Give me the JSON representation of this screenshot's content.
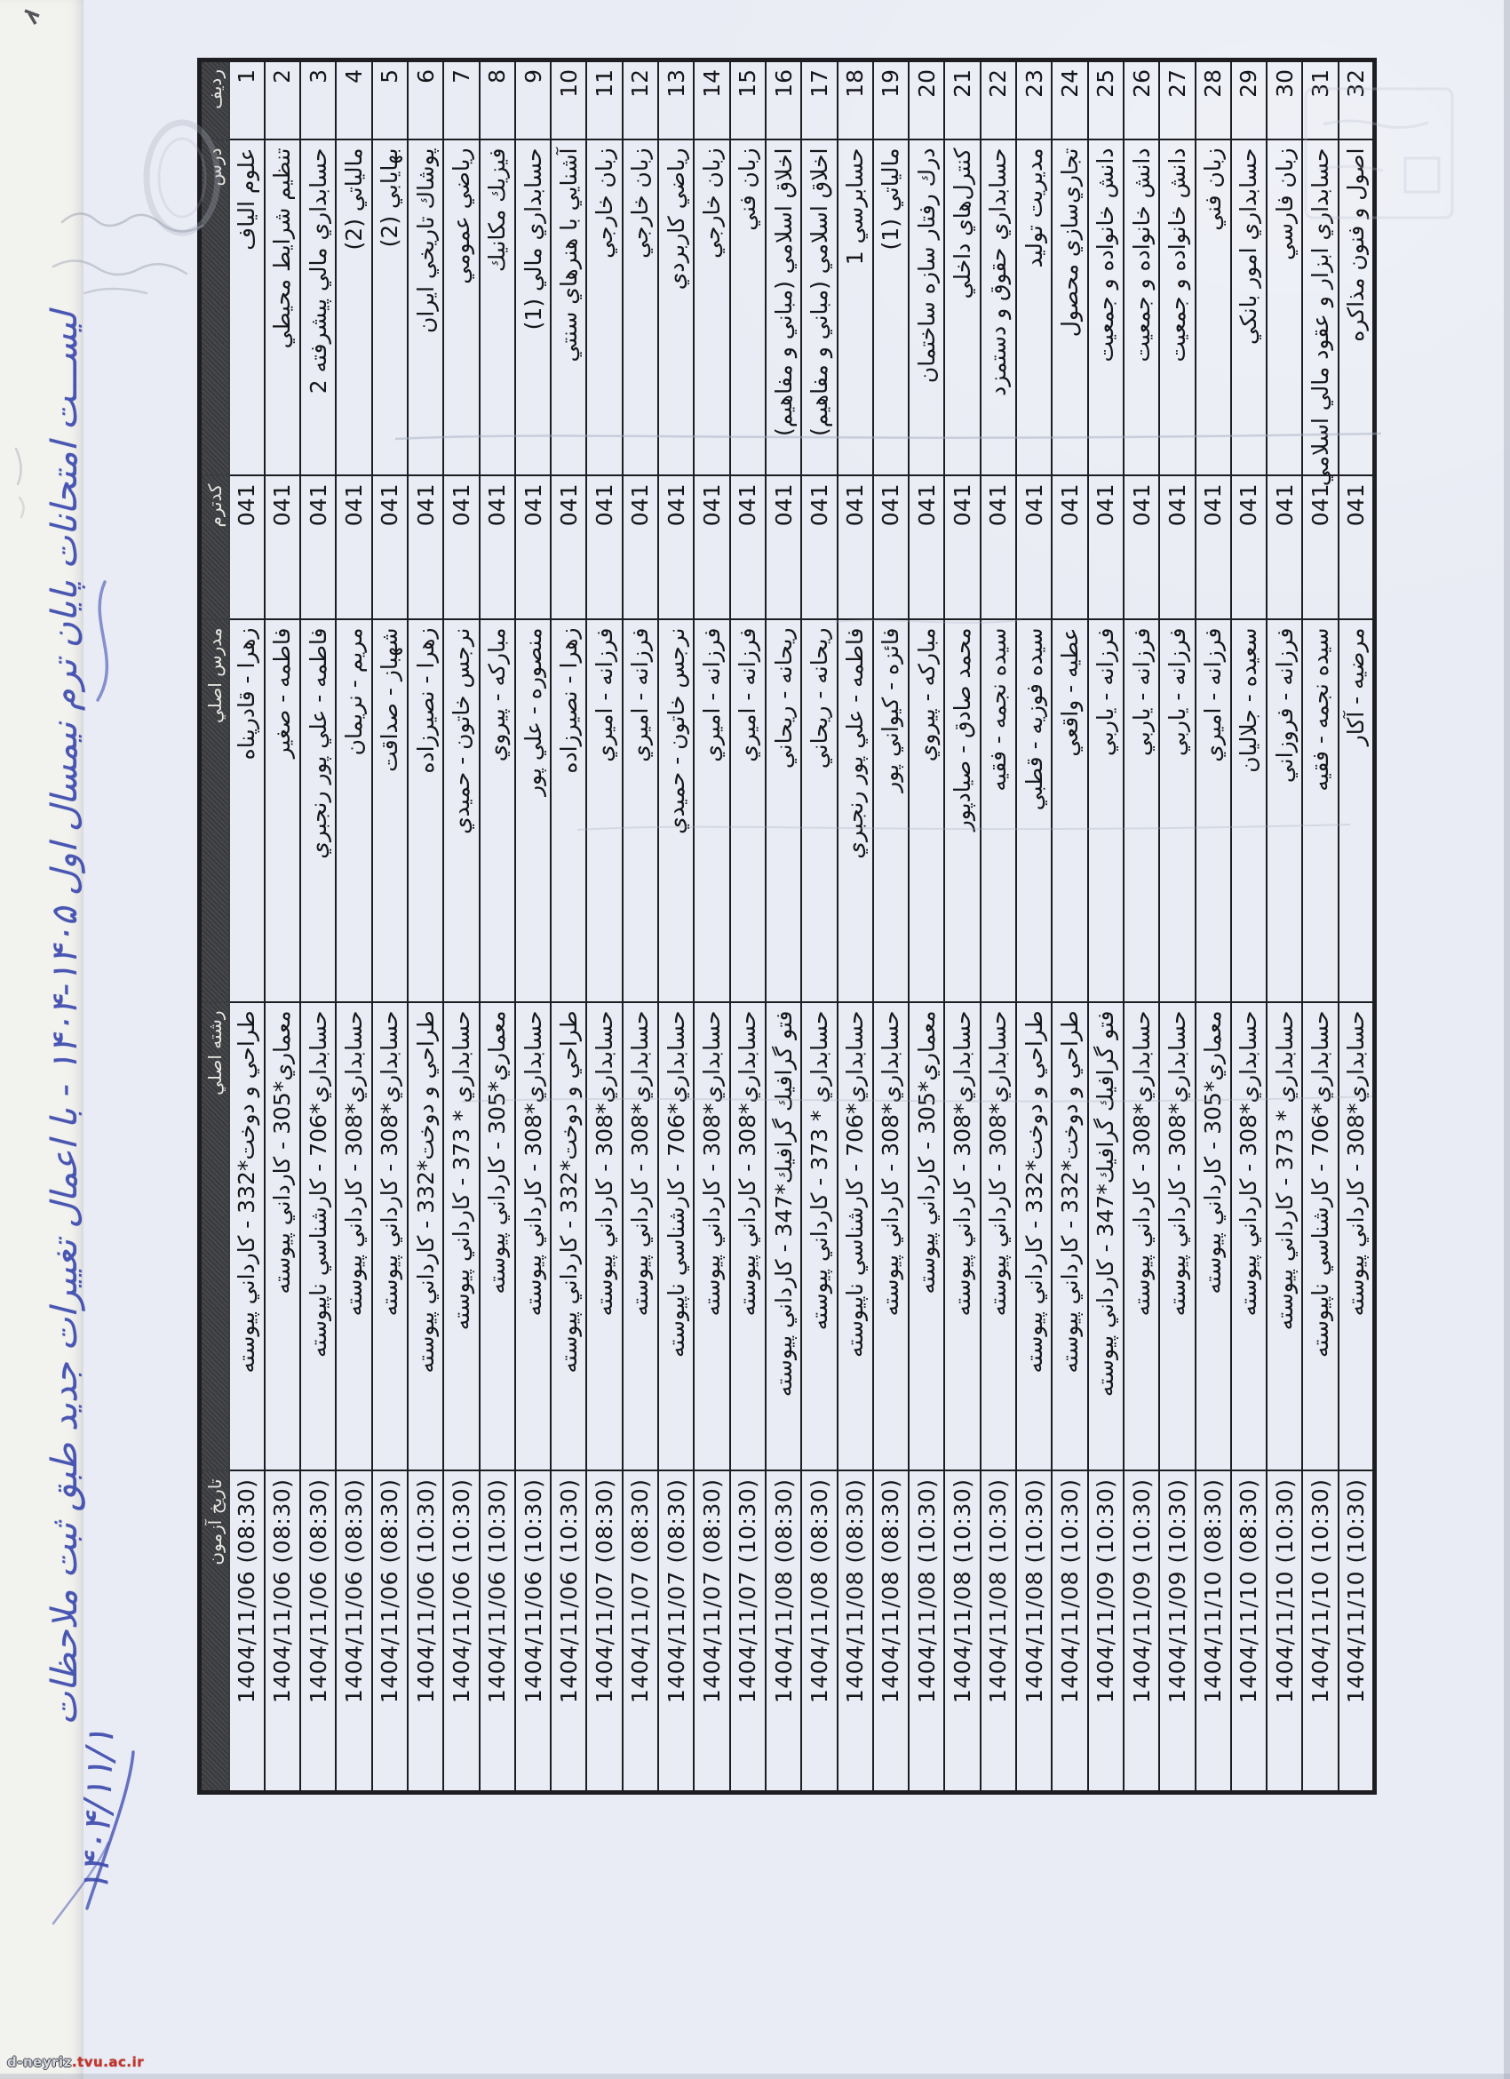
{
  "colors": {
    "paper": "#e9ecf4",
    "ink_blue": "#3b49ad",
    "header_bg": "#3e3f43",
    "line": "#1d1d22"
  },
  "handwriting": {
    "title": "ليســـت امتحانات پايان ترم نيمسال اول ۱۴۰۵-۱۴۰۴ - با اعمال تغييرات جديد طبق ثبت ملاحظات",
    "date": "۱۴۰۴/۱۱/۱"
  },
  "watermark": {
    "site_prefix": "d-neyriz",
    "site_suffix": ".tvu.ac.ir"
  },
  "table": {
    "headers": [
      "رديف",
      "درس",
      "كدترم",
      "مدرس اصلي",
      "رشته اصلي",
      "تاريخ آزمون"
    ],
    "rows": [
      {
        "num": "1",
        "course": "علوم الياف",
        "term_code": "041",
        "instructor": "زهرا - قادرپناه",
        "major": "طراحي و دوخت*332 - كارداني پيوسته",
        "exam_datetime": "1404/11/06 (08:30)"
      },
      {
        "num": "2",
        "course": "تنظيم شرايط محيطي",
        "term_code": "041",
        "instructor": "فاطمه - صغير",
        "major": "معماري*305 - كارداني پيوسته",
        "exam_datetime": "1404/11/06 (08:30)"
      },
      {
        "num": "3",
        "course": "حسابداري مالي پيشرفته 2",
        "term_code": "041",
        "instructor": "فاطمه - علي پور رنجبري",
        "major": "حسابداري*706 - كارشناسي ناپيوسته",
        "exam_datetime": "1404/11/06 (08:30)"
      },
      {
        "num": "4",
        "course": "مالياتي (2)",
        "term_code": "041",
        "instructor": "مريم - نريمان",
        "major": "حسابداري*308 - كارداني پيوسته",
        "exam_datetime": "1404/11/06 (08:30)"
      },
      {
        "num": "5",
        "course": "بهايابي (2)",
        "term_code": "041",
        "instructor": "شهباز - صداقت",
        "major": "حسابداري*308 - كارداني پيوسته",
        "exam_datetime": "1404/11/06 (08:30)"
      },
      {
        "num": "6",
        "course": "پوشاك تاريخي ايران",
        "term_code": "041",
        "instructor": "زهرا - نصيرزاده",
        "major": "طراحي و دوخت*332 - كارداني پيوسته",
        "exam_datetime": "1404/11/06 (10:30)"
      },
      {
        "num": "7",
        "course": "رياضي عمومي",
        "term_code": "041",
        "instructor": "نرجس خاتون - حميدي",
        "major": "حسابداري * 373 - كارداني پيوسته",
        "exam_datetime": "1404/11/06 (10:30)"
      },
      {
        "num": "8",
        "course": "فيزيك مكانيك",
        "term_code": "041",
        "instructor": "مباركه - پيروي",
        "major": "معماري*305 - كارداني پيوسته",
        "exam_datetime": "1404/11/06 (10:30)"
      },
      {
        "num": "9",
        "course": "حسابداري مالي (1)",
        "term_code": "041",
        "instructor": "منصوره - علي پور",
        "major": "حسابداري*308 - كارداني پيوسته",
        "exam_datetime": "1404/11/06 (10:30)"
      },
      {
        "num": "10",
        "course": "آشنايي با هنرهاي سنتي",
        "term_code": "041",
        "instructor": "زهرا - نصيرزاده",
        "major": "طراحي و دوخت*332 - كارداني پيوسته",
        "exam_datetime": "1404/11/06 (10:30)"
      },
      {
        "num": "11",
        "course": "زبان خارجي",
        "term_code": "041",
        "instructor": "فرزانه - اميري",
        "major": "حسابداري*308 - كارداني پيوسته",
        "exam_datetime": "1404/11/07 (08:30)"
      },
      {
        "num": "12",
        "course": "زبان خارجي",
        "term_code": "041",
        "instructor": "فرزانه - اميري",
        "major": "حسابداري*308 - كارداني پيوسته",
        "exam_datetime": "1404/11/07 (08:30)"
      },
      {
        "num": "13",
        "course": "رياضي كاربردي",
        "term_code": "041",
        "instructor": "نرجس خاتون - حميدي",
        "major": "حسابداري*706 - كارشناسي ناپيوسته",
        "exam_datetime": "1404/11/07 (08:30)"
      },
      {
        "num": "14",
        "course": "زبان خارجي",
        "term_code": "041",
        "instructor": "فرزانه - اميري",
        "major": "حسابداري*308 - كارداني پيوسته",
        "exam_datetime": "1404/11/07 (08:30)"
      },
      {
        "num": "15",
        "course": "زبان فني",
        "term_code": "041",
        "instructor": "فرزانه - اميري",
        "major": "حسابداري*308 - كارداني پيوسته",
        "exam_datetime": "1404/11/07 (10:30)"
      },
      {
        "num": "16",
        "course": "اخلاق اسلامي (مباني و مفاهيم)",
        "term_code": "041",
        "instructor": "ريحانه - ريحاني",
        "major": "فتو گرافيك گرافيك*347 - كارداني پيوسته",
        "exam_datetime": "1404/11/08 (08:30)"
      },
      {
        "num": "17",
        "course": "اخلاق اسلامي (مباني و مفاهيم)",
        "term_code": "041",
        "instructor": "ريحانه - ريحاني",
        "major": "حسابداري * 373 - كارداني پيوسته",
        "exam_datetime": "1404/11/08 (08:30)"
      },
      {
        "num": "18",
        "course": "حسابرسي 1",
        "term_code": "041",
        "instructor": "فاطمه - علي پور رنجبري",
        "major": "حسابداري*706 - كارشناسي ناپيوسته",
        "exam_datetime": "1404/11/08 (08:30)"
      },
      {
        "num": "19",
        "course": "مالياتي (1)",
        "term_code": "041",
        "instructor": "فائزه - كيواني پور",
        "major": "حسابداري*308 - كارداني پيوسته",
        "exam_datetime": "1404/11/08 (08:30)"
      },
      {
        "num": "20",
        "course": "درك رفتار سازه ساختمان",
        "term_code": "041",
        "instructor": "مباركه - پيروي",
        "major": "معماري*305 - كارداني پيوسته",
        "exam_datetime": "1404/11/08 (10:30)"
      },
      {
        "num": "21",
        "course": "كنترل‌هاي داخلي",
        "term_code": "041",
        "instructor": "محمد صادق - صيادپور",
        "major": "حسابداري*308 - كارداني پيوسته",
        "exam_datetime": "1404/11/08 (10:30)"
      },
      {
        "num": "22",
        "course": "حسابداري حقوق و دستمزد",
        "term_code": "041",
        "instructor": "سيده نجمه - فقيه",
        "major": "حسابداري*308 - كارداني پيوسته",
        "exam_datetime": "1404/11/08 (10:30)"
      },
      {
        "num": "23",
        "course": "مديريت توليد",
        "term_code": "041",
        "instructor": "سيده فوزيه - قطبي",
        "major": "طراحي و دوخت*332 - كارداني پيوسته",
        "exam_datetime": "1404/11/08 (10:30)"
      },
      {
        "num": "24",
        "course": "تجاري‌سازي محصول",
        "term_code": "041",
        "instructor": "عطيه - واقعي",
        "major": "طراحي و دوخت*332 - كارداني پيوسته",
        "exam_datetime": "1404/11/08 (10:30)"
      },
      {
        "num": "25",
        "course": "دانش خانواده و جمعيت",
        "term_code": "041",
        "instructor": "فرزانه - ياربي",
        "major": "فتو گرافيك گرافيك*347 - كارداني پيوسته",
        "exam_datetime": "1404/11/09 (10:30)"
      },
      {
        "num": "26",
        "course": "دانش خانواده و جمعيت",
        "term_code": "041",
        "instructor": "فرزانه - ياربي",
        "major": "حسابداري*308 - كارداني پيوسته",
        "exam_datetime": "1404/11/09 (10:30)"
      },
      {
        "num": "27",
        "course": "دانش خانواده و جمعيت",
        "term_code": "041",
        "instructor": "فرزانه - ياربي",
        "major": "حسابداري*308 - كارداني پيوسته",
        "exam_datetime": "1404/11/09 (10:30)"
      },
      {
        "num": "28",
        "course": "زبان فني",
        "term_code": "041",
        "instructor": "فرزانه - اميري",
        "major": "معماري*305 - كارداني پيوسته",
        "exam_datetime": "1404/11/10 (08:30)"
      },
      {
        "num": "29",
        "course": "حسابداري امور بانكي",
        "term_code": "041",
        "instructor": "سعيده - جلاليان",
        "major": "حسابداري*308 - كارداني پيوسته",
        "exam_datetime": "1404/11/10 (08:30)"
      },
      {
        "num": "30",
        "course": "زبان فارسي",
        "term_code": "041",
        "instructor": "فرزانه - فروزاني",
        "major": "حسابداري * 373 - كارداني پيوسته",
        "exam_datetime": "1404/11/10 (10:30)"
      },
      {
        "num": "31",
        "course": "حسابداري ابزار و عقود مالي اسلامي",
        "term_code": "041",
        "instructor": "سيده نجمه - فقيه",
        "major": "حسابداري*706 - كارشناسي ناپيوسته",
        "exam_datetime": "1404/11/10 (10:30)"
      },
      {
        "num": "32",
        "course": "اصول و فنون مذاكره",
        "term_code": "041",
        "instructor": "مرضيه - آكار",
        "major": "حسابداري*308 - كارداني پيوسته",
        "exam_datetime": "1404/11/10 (10:30)"
      }
    ]
  }
}
